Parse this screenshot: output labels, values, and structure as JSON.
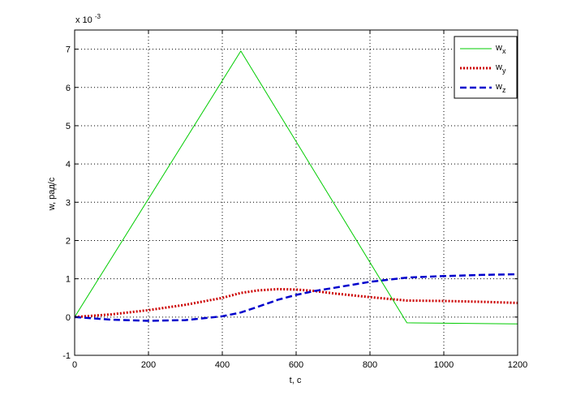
{
  "chart_data": {
    "type": "line",
    "title": "",
    "xlabel": "t, c",
    "ylabel": "w, рад/с",
    "y_multiplier": {
      "base": "x 10",
      "exponent": "-3"
    },
    "xlim": [
      0,
      1200
    ],
    "ylim": [
      -1,
      7.5
    ],
    "xticks": [
      "0",
      "200",
      "400",
      "600",
      "800",
      "1000",
      "1200"
    ],
    "yticks": [
      "-1",
      "0",
      "1",
      "2",
      "3",
      "4",
      "5",
      "6",
      "7"
    ],
    "grid": true,
    "legend_position": "top-right",
    "series": [
      {
        "name": "w",
        "subscript": "x",
        "color": "#00cc00",
        "style": "solid",
        "x": [
          0,
          450,
          900,
          1200
        ],
        "y": [
          0,
          6.95,
          -0.15,
          -0.18
        ]
      },
      {
        "name": "w",
        "subscript": "y",
        "color": "#cc0000",
        "style": "dotted",
        "x": [
          0,
          100,
          200,
          300,
          400,
          450,
          500,
          550,
          600,
          650,
          700,
          800,
          900,
          1000,
          1100,
          1200
        ],
        "y": [
          0,
          0.07,
          0.18,
          0.32,
          0.5,
          0.63,
          0.7,
          0.73,
          0.72,
          0.68,
          0.62,
          0.52,
          0.43,
          0.42,
          0.4,
          0.37
        ]
      },
      {
        "name": "w",
        "subscript": "z",
        "color": "#0000cc",
        "style": "dashed",
        "x": [
          0,
          100,
          200,
          300,
          400,
          450,
          500,
          550,
          600,
          650,
          700,
          800,
          900,
          1000,
          1100,
          1200
        ],
        "y": [
          0,
          -0.07,
          -0.1,
          -0.08,
          0.02,
          0.12,
          0.28,
          0.45,
          0.58,
          0.68,
          0.76,
          0.92,
          1.03,
          1.07,
          1.1,
          1.12
        ]
      }
    ]
  }
}
